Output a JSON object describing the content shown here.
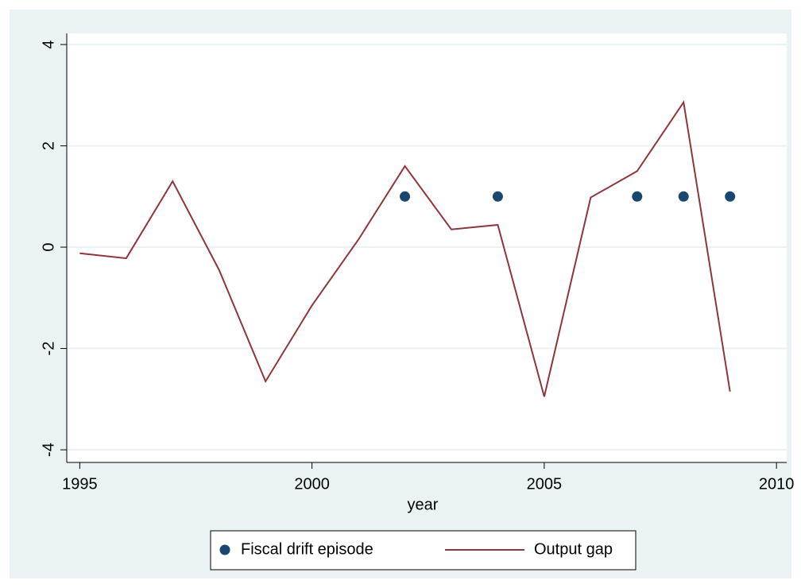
{
  "chart_data": {
    "type": "line",
    "xlabel": "year",
    "xlim": [
      1994.72,
      2010.22
    ],
    "xticks": [
      1995,
      2000,
      2005,
      2010
    ],
    "ylim": [
      -4.25,
      4.22
    ],
    "yticks": [
      -4,
      -2,
      0,
      2,
      4
    ],
    "grid": true,
    "series": [
      {
        "name": "Fiscal drift episode",
        "type": "scatter",
        "color": "#1a476f",
        "x": [
          2002,
          2004,
          2007,
          2008,
          2009
        ],
        "values": [
          1,
          1,
          1,
          1,
          1
        ]
      },
      {
        "name": "Output gap",
        "type": "line",
        "color": "#90353b",
        "x": [
          1995,
          1996,
          1997,
          1998,
          1999,
          2000,
          2001,
          2002,
          2003,
          2004,
          2005,
          2006,
          2007,
          2008,
          2009
        ],
        "values": [
          -0.12,
          -0.22,
          1.3,
          -0.45,
          -2.65,
          -1.15,
          0.15,
          1.6,
          0.35,
          0.44,
          -2.95,
          0.98,
          1.5,
          2.86,
          -2.85
        ]
      }
    ]
  }
}
